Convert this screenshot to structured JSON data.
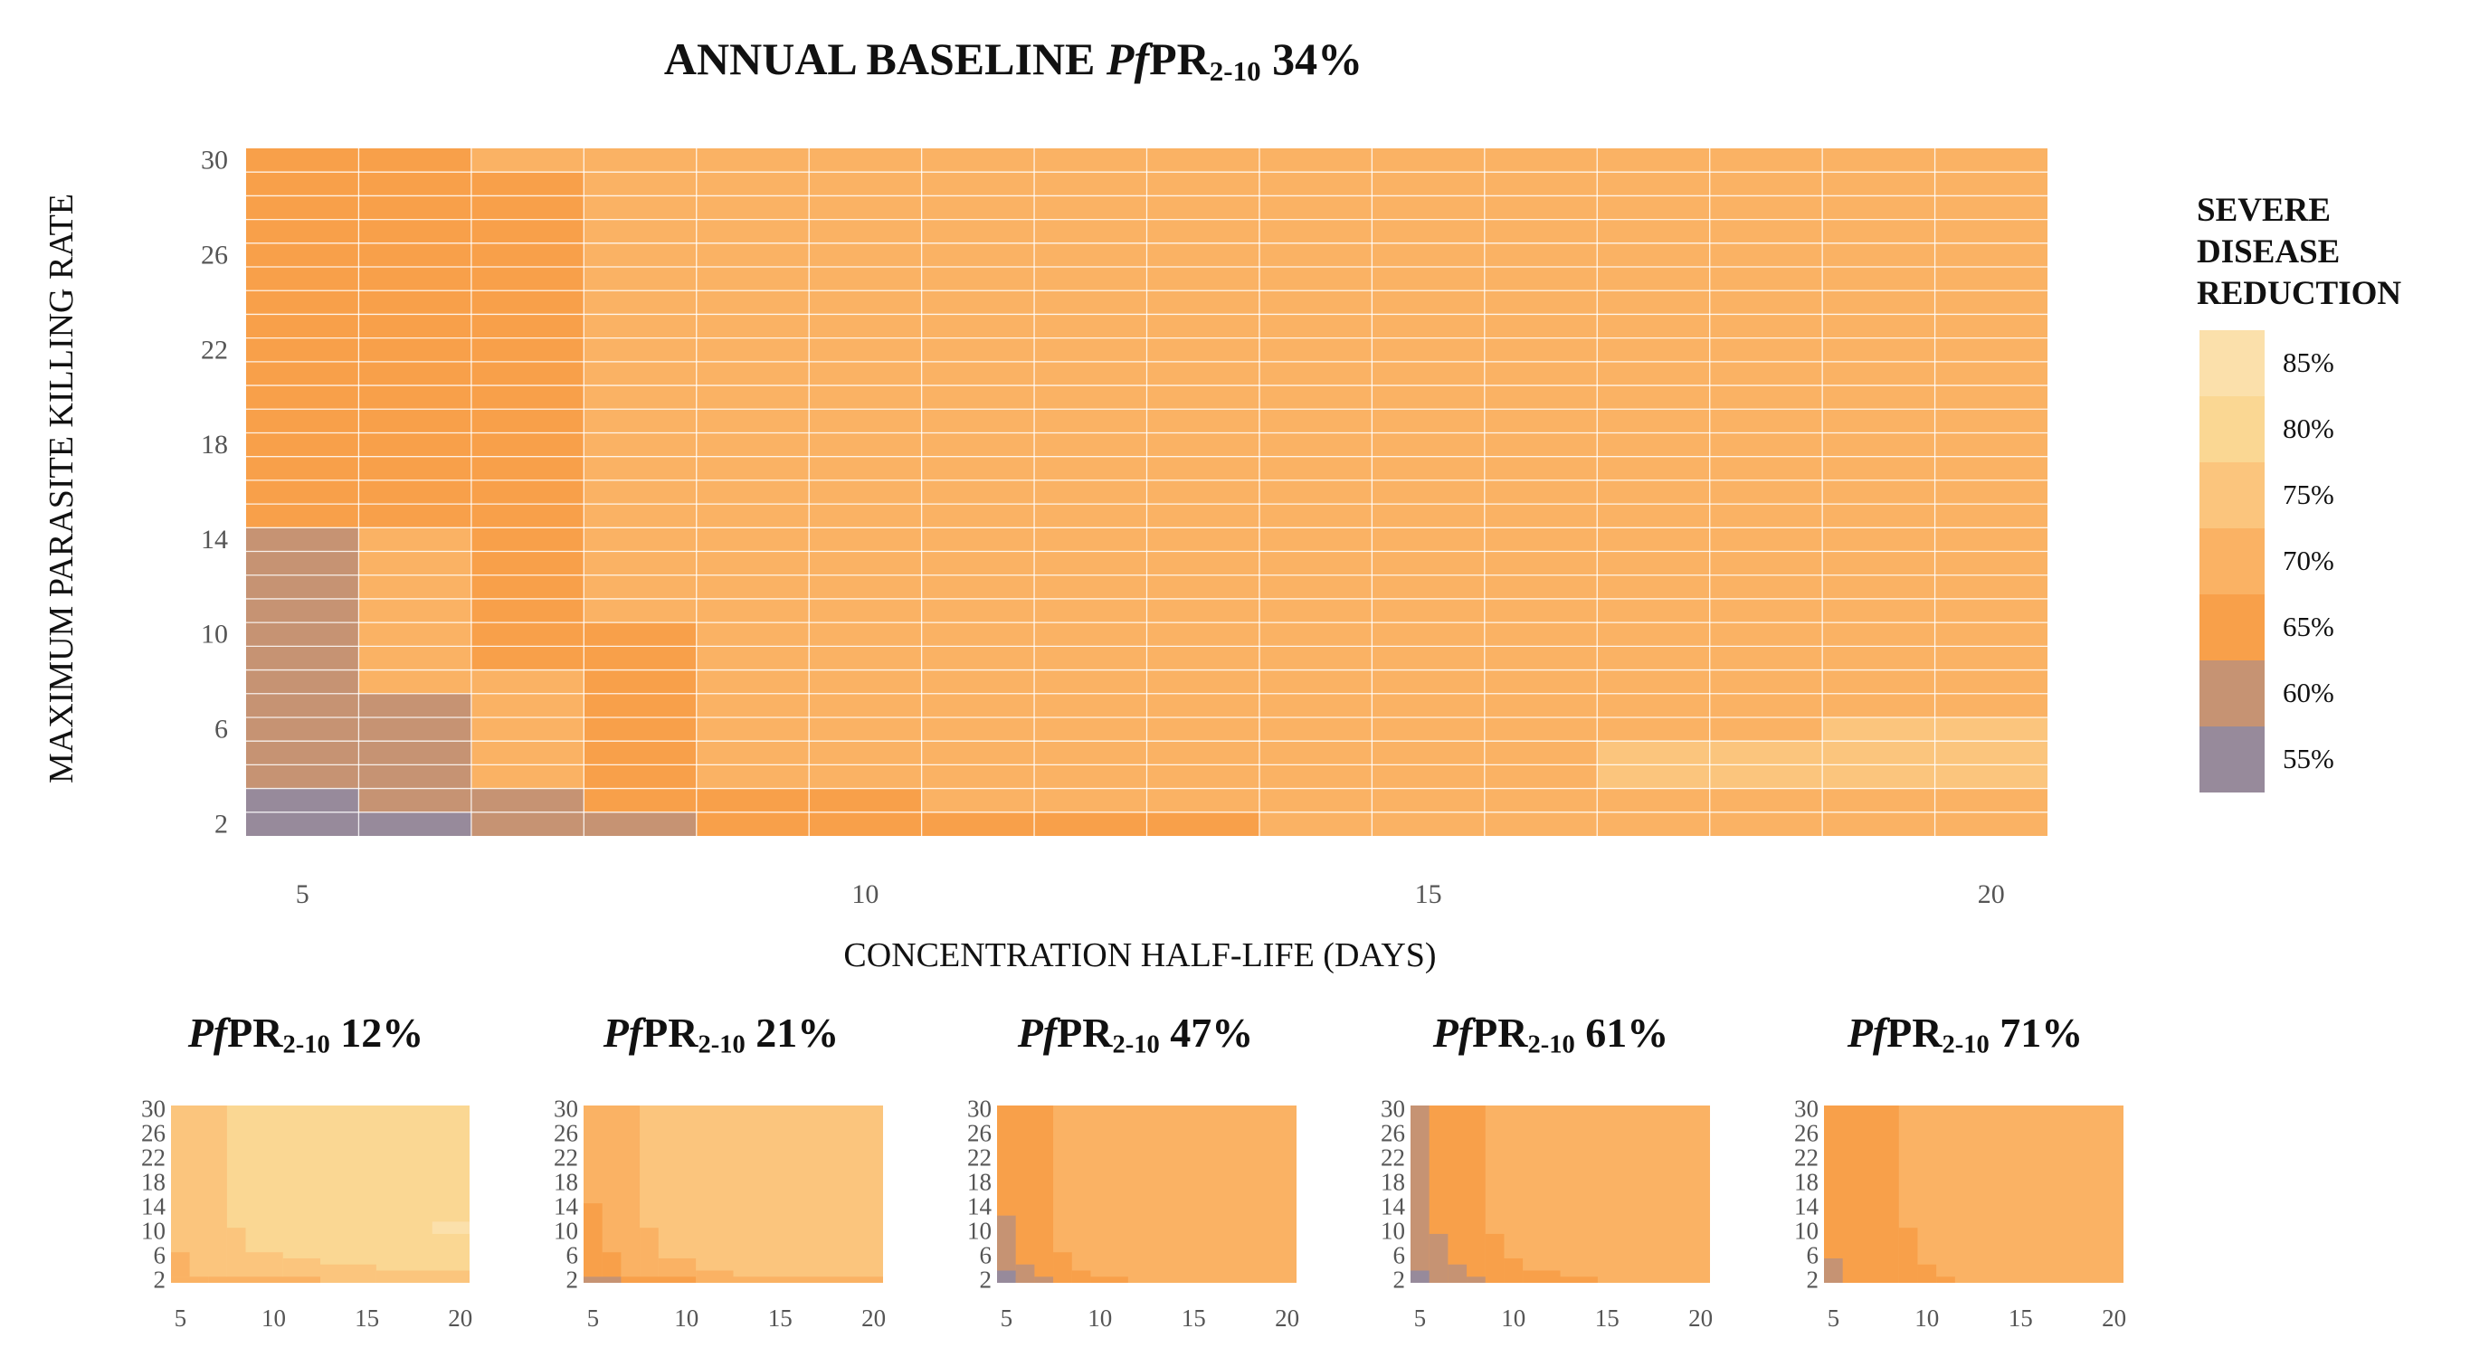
{
  "main_title": {
    "prefix": "ANNUAL BASELINE ",
    "italic": "Pf",
    "pr": "PR",
    "sub": "2-10",
    "value": " 34%"
  },
  "colors": {
    "c55": "#978a9b",
    "c60": "#c69373",
    "c65": "#f8a04a",
    "c70": "#fab264",
    "c75": "#fbc57d",
    "c80": "#fad793",
    "c85": "#fbe0ab"
  },
  "chart_data": [
    {
      "type": "heatmap",
      "title": "ANNUAL BASELINE PfPR2-10 34%",
      "xlabel": "CONCENTRATION HALF-LIFE (DAYS)",
      "ylabel": "MAXIMUM PARASITE KILLING RATE",
      "x": [
        5,
        6,
        7,
        8,
        9,
        10,
        11,
        12,
        13,
        14,
        15,
        16,
        17,
        18,
        19,
        20
      ],
      "xlim": [
        4.5,
        20.5
      ],
      "ylim": [
        1.5,
        30.5
      ],
      "xticks": [
        5,
        10,
        15,
        20
      ],
      "yticks": [
        2,
        6,
        10,
        14,
        18,
        22,
        26,
        30
      ],
      "grid": true,
      "legend": {
        "title": [
          "SEVERE",
          "DISEASE",
          "REDUCTION"
        ],
        "position": "right",
        "entries": [
          "85%",
          "80%",
          "75%",
          "70%",
          "65%",
          "60%",
          "55%"
        ]
      },
      "cells": [
        {
          "x0": 5,
          "x1": 20,
          "y0": 2,
          "y1": 30,
          "value": 70
        },
        {
          "x0": 5,
          "x1": 6,
          "y0": 15,
          "y1": 30,
          "value": 65
        },
        {
          "x0": 7,
          "x1": 7,
          "y0": 9,
          "y1": 29,
          "value": 65
        },
        {
          "x0": 8,
          "x1": 8,
          "y0": 3,
          "y1": 10,
          "value": 65
        },
        {
          "x0": 9,
          "x1": 10,
          "y0": 3,
          "y1": 3,
          "value": 65
        },
        {
          "x0": 9,
          "x1": 13,
          "y0": 2,
          "y1": 2,
          "value": 65
        },
        {
          "x0": 5,
          "x1": 5,
          "y0": 4,
          "y1": 14,
          "value": 60
        },
        {
          "x0": 6,
          "x1": 6,
          "y0": 3,
          "y1": 7,
          "value": 60
        },
        {
          "x0": 7,
          "x1": 7,
          "y0": 2,
          "y1": 3,
          "value": 60
        },
        {
          "x0": 8,
          "x1": 8,
          "y0": 2,
          "y1": 2,
          "value": 60
        },
        {
          "x0": 5,
          "x1": 5,
          "y0": 2,
          "y1": 3,
          "value": 55
        },
        {
          "x0": 6,
          "x1": 6,
          "y0": 2,
          "y1": 2,
          "value": 55
        },
        {
          "x0": 17,
          "x1": 18,
          "y0": 4,
          "y1": 5,
          "value": 75
        },
        {
          "x0": 19,
          "x1": 20,
          "y0": 4,
          "y1": 6,
          "value": 75
        }
      ]
    },
    {
      "type": "heatmap",
      "title": "PfPR2-10 12%",
      "title_parts": {
        "italic": "Pf",
        "pr": "PR",
        "sub": "2-10",
        "value": " 12%"
      },
      "xticks": [
        5,
        10,
        15,
        20
      ],
      "yticks": [
        2,
        6,
        10,
        14,
        18,
        22,
        26,
        30
      ],
      "cells": [
        {
          "x0": 5,
          "x1": 20,
          "y0": 2,
          "y1": 30,
          "value": 80
        },
        {
          "x0": 5,
          "x1": 7,
          "y0": 2,
          "y1": 30,
          "value": 75
        },
        {
          "x0": 8,
          "x1": 8,
          "y0": 2,
          "y1": 10,
          "value": 75
        },
        {
          "x0": 9,
          "x1": 10,
          "y0": 2,
          "y1": 6,
          "value": 75
        },
        {
          "x0": 11,
          "x1": 12,
          "y0": 2,
          "y1": 5,
          "value": 75
        },
        {
          "x0": 13,
          "x1": 15,
          "y0": 2,
          "y1": 4,
          "value": 75
        },
        {
          "x0": 16,
          "x1": 20,
          "y0": 2,
          "y1": 3,
          "value": 75
        },
        {
          "x0": 19,
          "x1": 20,
          "y0": 10,
          "y1": 11,
          "value": 85
        },
        {
          "x0": 5,
          "x1": 5,
          "y0": 3,
          "y1": 6,
          "value": 70
        },
        {
          "x0": 5,
          "x1": 6,
          "y0": 2,
          "y1": 2,
          "value": 70
        },
        {
          "x0": 7,
          "x1": 12,
          "y0": 2,
          "y1": 2,
          "value": 70
        }
      ]
    },
    {
      "type": "heatmap",
      "title": "PfPR2-10 21%",
      "title_parts": {
        "italic": "Pf",
        "pr": "PR",
        "sub": "2-10",
        "value": " 21%"
      },
      "xticks": [
        5,
        10,
        15,
        20
      ],
      "yticks": [
        2,
        6,
        10,
        14,
        18,
        22,
        26,
        30
      ],
      "cells": [
        {
          "x0": 5,
          "x1": 20,
          "y0": 2,
          "y1": 30,
          "value": 75
        },
        {
          "x0": 5,
          "x1": 7,
          "y0": 2,
          "y1": 30,
          "value": 70
        },
        {
          "x0": 8,
          "x1": 8,
          "y0": 2,
          "y1": 10,
          "value": 70
        },
        {
          "x0": 9,
          "x1": 10,
          "y0": 2,
          "y1": 5,
          "value": 70
        },
        {
          "x0": 11,
          "x1": 12,
          "y0": 2,
          "y1": 3,
          "value": 70
        },
        {
          "x0": 13,
          "x1": 20,
          "y0": 2,
          "y1": 2,
          "value": 70
        },
        {
          "x0": 5,
          "x1": 5,
          "y0": 3,
          "y1": 14,
          "value": 65
        },
        {
          "x0": 6,
          "x1": 6,
          "y0": 2,
          "y1": 6,
          "value": 65
        },
        {
          "x0": 7,
          "x1": 10,
          "y0": 2,
          "y1": 2,
          "value": 65
        },
        {
          "x0": 5,
          "x1": 6,
          "y0": 2,
          "y1": 2,
          "value": 60
        }
      ]
    },
    {
      "type": "heatmap",
      "title": "PfPR2-10 47%",
      "title_parts": {
        "italic": "Pf",
        "pr": "PR",
        "sub": "2-10",
        "value": " 47%"
      },
      "xticks": [
        5,
        10,
        15,
        20
      ],
      "yticks": [
        2,
        6,
        10,
        14,
        18,
        22,
        26,
        30
      ],
      "cells": [
        {
          "x0": 5,
          "x1": 20,
          "y0": 2,
          "y1": 30,
          "value": 70
        },
        {
          "x0": 5,
          "x1": 7,
          "y0": 2,
          "y1": 30,
          "value": 65
        },
        {
          "x0": 8,
          "x1": 8,
          "y0": 2,
          "y1": 6,
          "value": 65
        },
        {
          "x0": 9,
          "x1": 9,
          "y0": 2,
          "y1": 3,
          "value": 65
        },
        {
          "x0": 10,
          "x1": 11,
          "y0": 2,
          "y1": 2,
          "value": 65
        },
        {
          "x0": 5,
          "x1": 5,
          "y0": 3,
          "y1": 12,
          "value": 60
        },
        {
          "x0": 6,
          "x1": 6,
          "y0": 2,
          "y1": 4,
          "value": 60
        },
        {
          "x0": 7,
          "x1": 7,
          "y0": 2,
          "y1": 2,
          "value": 60
        },
        {
          "x0": 5,
          "x1": 5,
          "y0": 2,
          "y1": 3,
          "value": 55
        }
      ]
    },
    {
      "type": "heatmap",
      "title": "PfPR2-10 61%",
      "title_parts": {
        "italic": "Pf",
        "pr": "PR",
        "sub": "2-10",
        "value": " 61%"
      },
      "xticks": [
        5,
        10,
        15,
        20
      ],
      "yticks": [
        2,
        6,
        10,
        14,
        18,
        22,
        26,
        30
      ],
      "cells": [
        {
          "x0": 5,
          "x1": 20,
          "y0": 2,
          "y1": 30,
          "value": 70
        },
        {
          "x0": 5,
          "x1": 8,
          "y0": 2,
          "y1": 30,
          "value": 65
        },
        {
          "x0": 9,
          "x1": 9,
          "y0": 2,
          "y1": 9,
          "value": 65
        },
        {
          "x0": 10,
          "x1": 10,
          "y0": 2,
          "y1": 5,
          "value": 65
        },
        {
          "x0": 11,
          "x1": 12,
          "y0": 2,
          "y1": 3,
          "value": 65
        },
        {
          "x0": 13,
          "x1": 14,
          "y0": 2,
          "y1": 2,
          "value": 65
        },
        {
          "x0": 5,
          "x1": 5,
          "y0": 2,
          "y1": 30,
          "value": 60
        },
        {
          "x0": 6,
          "x1": 6,
          "y0": 2,
          "y1": 9,
          "value": 60
        },
        {
          "x0": 7,
          "x1": 7,
          "y0": 2,
          "y1": 4,
          "value": 60
        },
        {
          "x0": 8,
          "x1": 8,
          "y0": 2,
          "y1": 2,
          "value": 60
        },
        {
          "x0": 5,
          "x1": 5,
          "y0": 2,
          "y1": 3,
          "value": 55
        }
      ]
    },
    {
      "type": "heatmap",
      "title": "PfPR2-10 71%",
      "title_parts": {
        "italic": "Pf",
        "pr": "PR",
        "sub": "2-10",
        "value": " 71%"
      },
      "xticks": [
        5,
        10,
        15,
        20
      ],
      "yticks": [
        2,
        6,
        10,
        14,
        18,
        22,
        26,
        30
      ],
      "cells": [
        {
          "x0": 5,
          "x1": 20,
          "y0": 2,
          "y1": 30,
          "value": 70
        },
        {
          "x0": 5,
          "x1": 8,
          "y0": 2,
          "y1": 30,
          "value": 65
        },
        {
          "x0": 9,
          "x1": 9,
          "y0": 2,
          "y1": 10,
          "value": 65
        },
        {
          "x0": 10,
          "x1": 10,
          "y0": 2,
          "y1": 4,
          "value": 65
        },
        {
          "x0": 11,
          "x1": 11,
          "y0": 2,
          "y1": 2,
          "value": 65
        },
        {
          "x0": 5,
          "x1": 5,
          "y0": 2,
          "y1": 5,
          "value": 60
        }
      ]
    }
  ]
}
